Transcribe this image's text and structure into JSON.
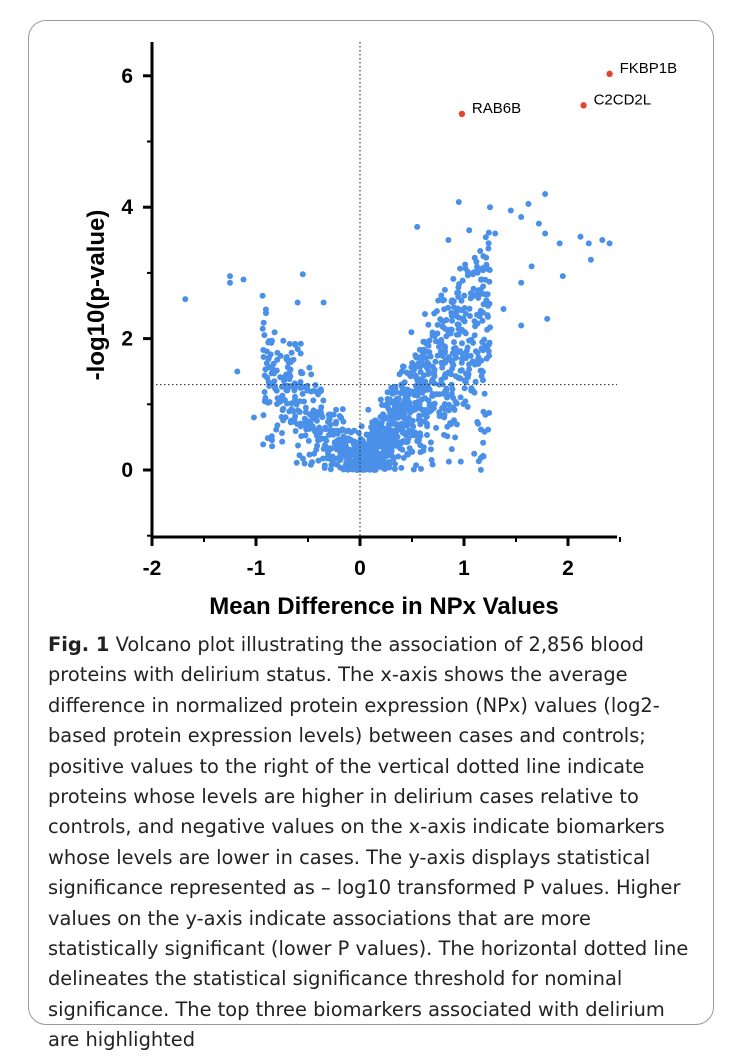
{
  "chart_data": {
    "type": "scatter",
    "title": "",
    "xlabel": "Mean Difference in NPx Values",
    "ylabel": "-log10(p-value)",
    "xlim": [
      -2,
      2.5
    ],
    "ylim": [
      -1,
      6.5
    ],
    "x_ticks": [
      "-2",
      "-1",
      "0",
      "1",
      "2"
    ],
    "y_ticks": [
      "0",
      "2",
      "4",
      "6"
    ],
    "grid": false,
    "reference_lines": {
      "vertical_x": 0,
      "horizontal_y": 1.3
    },
    "point_color": "#4a90e8",
    "highlight_color": "#e8432e",
    "highlighted": [
      {
        "label": "FKBP1B",
        "x": 2.4,
        "y": 6.03
      },
      {
        "label": "C2CD2L",
        "x": 2.15,
        "y": 5.55
      },
      {
        "label": "RAB6B",
        "x": 0.98,
        "y": 5.42
      }
    ],
    "outliers": [
      {
        "x": -1.68,
        "y": 2.6
      },
      {
        "x": -1.25,
        "y": 2.95
      },
      {
        "x": -1.25,
        "y": 2.85
      },
      {
        "x": -1.12,
        "y": 2.9
      },
      {
        "x": -0.55,
        "y": 2.98
      },
      {
        "x": -0.6,
        "y": 2.55
      },
      {
        "x": -0.35,
        "y": 2.55
      },
      {
        "x": -1.18,
        "y": 1.5
      },
      {
        "x": -1.02,
        "y": 0.8
      },
      {
        "x": 0.95,
        "y": 4.08
      },
      {
        "x": 1.25,
        "y": 4.0
      },
      {
        "x": 1.45,
        "y": 3.95
      },
      {
        "x": 1.62,
        "y": 4.05
      },
      {
        "x": 1.78,
        "y": 4.2
      },
      {
        "x": 1.72,
        "y": 3.75
      },
      {
        "x": 1.55,
        "y": 3.85
      },
      {
        "x": 1.3,
        "y": 3.6
      },
      {
        "x": 1.05,
        "y": 3.65
      },
      {
        "x": 1.78,
        "y": 3.6
      },
      {
        "x": 2.12,
        "y": 3.55
      },
      {
        "x": 2.2,
        "y": 3.45
      },
      {
        "x": 2.33,
        "y": 3.5
      },
      {
        "x": 2.4,
        "y": 3.45
      },
      {
        "x": 2.22,
        "y": 3.2
      },
      {
        "x": 1.92,
        "y": 3.45
      },
      {
        "x": 1.65,
        "y": 3.1
      },
      {
        "x": 1.95,
        "y": 2.95
      },
      {
        "x": 1.8,
        "y": 2.3
      },
      {
        "x": 1.38,
        "y": 2.45
      },
      {
        "x": 1.55,
        "y": 2.85
      },
      {
        "x": 0.55,
        "y": 3.7
      },
      {
        "x": 0.85,
        "y": 3.5
      },
      {
        "x": 1.55,
        "y": 2.2
      }
    ],
    "cloud_point_count": 1400
  },
  "caption": {
    "lead": "Fig. 1",
    "text": "Volcano plot illustrating the association of 2,856 blood proteins with delirium status. The x-axis shows the average difference in normalized protein expression (NPx) values (log2-based protein expression levels) between cases and controls; positive values to the right of the vertical dotted line indicate proteins whose levels are higher in delirium cases relative to controls, and negative values on the x-axis indicate biomarkers whose levels are lower in cases. The y-axis displays statistical significance represented as – log10 transformed P values. Higher values on the y-axis indicate associations that are more statistically significant (lower P values). The horizontal dotted line delineates the statistical significance threshold for nominal significance. The top three biomarkers associated with delirium are highlighted"
  }
}
